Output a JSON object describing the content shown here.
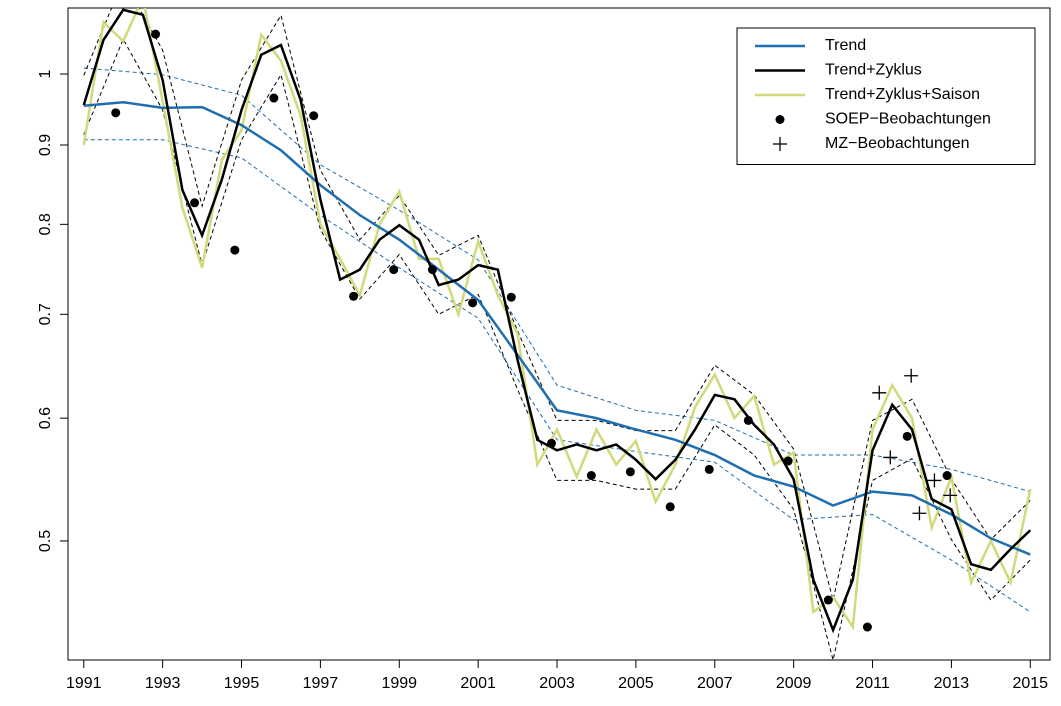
{
  "chart_data": {
    "type": "line",
    "log_y": true,
    "legend": "top-right",
    "xlim": [
      1990.6,
      2015.5
    ],
    "ylim": [
      0.419,
      1.103
    ],
    "xticks": [
      1991,
      1993,
      1995,
      1997,
      1999,
      2001,
      2003,
      2005,
      2007,
      2009,
      2011,
      2013,
      2015
    ],
    "yticks": [
      0.5,
      0.6,
      0.7,
      0.8,
      0.9,
      1
    ],
    "series": [
      {
        "color": "#1f6fb0",
        "style": "dashed",
        "kind": "line",
        "x": [
          1991,
          1993,
          1995,
          1997,
          1999,
          2001,
          2003,
          2005,
          2007,
          2009,
          2011,
          2013,
          2015
        ],
        "values": [
          1.009,
          0.999,
          0.969,
          0.874,
          0.817,
          0.759,
          0.63,
          0.607,
          0.598,
          0.568,
          0.568,
          0.556,
          0.538
        ]
      },
      {
        "color": "#1f6fb0",
        "style": "dashed",
        "kind": "line",
        "x": [
          1991,
          1993,
          1995,
          1997,
          1999,
          2001,
          2003,
          2005,
          2007,
          2009,
          2011,
          2013,
          2015
        ],
        "values": [
          0.907,
          0.907,
          0.883,
          0.811,
          0.75,
          0.696,
          0.581,
          0.571,
          0.562,
          0.516,
          0.52,
          0.486,
          0.45
        ]
      },
      {
        "color": "#000000",
        "style": "dashed",
        "kind": "line",
        "x": [
          1991,
          1992,
          1993,
          1994,
          1995,
          1996,
          1997,
          1998,
          1999,
          2000,
          2001,
          2002,
          2003,
          2004,
          2005,
          2006,
          2007,
          2008,
          2009,
          2010,
          2011,
          2012,
          2013,
          2014,
          2015
        ],
        "values": [
          0.998,
          1.15,
          1.036,
          0.822,
          0.991,
          1.091,
          0.867,
          0.782,
          0.835,
          0.764,
          0.787,
          0.683,
          0.598,
          0.598,
          0.589,
          0.589,
          0.649,
          0.621,
          0.573,
          0.458,
          0.598,
          0.617,
          0.548,
          0.501,
          0.531
        ]
      },
      {
        "color": "#000000",
        "style": "dashed",
        "kind": "line",
        "x": [
          1991,
          1992,
          1993,
          1994,
          1995,
          1996,
          1997,
          1998,
          1999,
          2000,
          2001,
          2002,
          2003,
          2004,
          2005,
          2006,
          2007,
          2008,
          2009,
          2010,
          2011,
          2012,
          2013,
          2014,
          2015
        ],
        "values": [
          0.914,
          1.053,
          0.948,
          0.753,
          0.907,
          0.999,
          0.794,
          0.716,
          0.765,
          0.7,
          0.721,
          0.626,
          0.547,
          0.547,
          0.54,
          0.54,
          0.594,
          0.568,
          0.524,
          0.419,
          0.547,
          0.565,
          0.501,
          0.458,
          0.486
        ]
      },
      {
        "name": "Trend+Zyklus+Saison",
        "color": "#d2d97a",
        "style": "solid",
        "kind": "line",
        "x": [
          1991,
          1991.5,
          1992,
          1992.5,
          1993,
          1993.5,
          1994,
          1994.5,
          1995,
          1995.5,
          1996,
          1996.5,
          1997,
          1997.5,
          1998,
          1998.5,
          1999,
          1999.5,
          2000,
          2000.5,
          2001,
          2001.5,
          2002,
          2002.5,
          2003,
          2003.5,
          2004,
          2004.5,
          2005,
          2005.5,
          2006,
          2006.5,
          2007,
          2007.5,
          2008,
          2008.5,
          2009,
          2009.5,
          2010,
          2010.5,
          2011,
          2011.5,
          2012,
          2012.5,
          2013,
          2013.5,
          2014,
          2014.5,
          2015
        ],
        "values": [
          0.9,
          1.08,
          1.05,
          1.12,
          0.96,
          0.82,
          0.75,
          0.88,
          0.92,
          1.06,
          1.02,
          0.94,
          0.8,
          0.76,
          0.72,
          0.8,
          0.84,
          0.76,
          0.76,
          0.7,
          0.78,
          0.72,
          0.68,
          0.56,
          0.59,
          0.55,
          0.59,
          0.56,
          0.58,
          0.53,
          0.56,
          0.61,
          0.64,
          0.6,
          0.62,
          0.56,
          0.57,
          0.45,
          0.46,
          0.44,
          0.59,
          0.63,
          0.6,
          0.51,
          0.55,
          0.47,
          0.5,
          0.47,
          0.54
        ]
      },
      {
        "name": "Trend",
        "color": "#1f6fb0",
        "style": "solid",
        "kind": "line",
        "x": [
          1991,
          1992,
          1993,
          1994,
          1995,
          1996,
          1997,
          1998,
          1999,
          2000,
          2001,
          2002,
          2003,
          2004,
          2005,
          2006,
          2007,
          2008,
          2009,
          2010,
          2011,
          2012,
          2013,
          2014,
          2015
        ],
        "values": [
          0.954,
          0.959,
          0.951,
          0.952,
          0.927,
          0.893,
          0.848,
          0.811,
          0.782,
          0.748,
          0.715,
          0.659,
          0.607,
          0.6,
          0.59,
          0.581,
          0.568,
          0.551,
          0.542,
          0.527,
          0.538,
          0.535,
          0.52,
          0.502,
          0.49
        ]
      },
      {
        "name": "Trend+Zyklus",
        "color": "#000000",
        "style": "solid",
        "kind": "line",
        "x": [
          1991,
          1991.5,
          1992,
          1992.5,
          1993,
          1993.5,
          1994,
          1994.5,
          1995,
          1995.5,
          1996,
          1996.5,
          1997,
          1997.5,
          1998,
          1998.5,
          1999,
          1999.5,
          2000,
          2000.5,
          2001,
          2001.5,
          2002,
          2002.5,
          2003,
          2003.5,
          2004,
          2004.5,
          2005,
          2005.5,
          2006,
          2006.5,
          2007,
          2007.5,
          2008,
          2008.5,
          2009,
          2009.5,
          2010,
          2010.5,
          2011,
          2011.5,
          2012,
          2012.5,
          2013,
          2013.5,
          2014,
          2014.5,
          2015
        ],
        "values": [
          0.955,
          1.052,
          1.1,
          1.092,
          0.991,
          0.842,
          0.787,
          0.855,
          0.948,
          1.029,
          1.044,
          0.962,
          0.83,
          0.737,
          0.748,
          0.782,
          0.799,
          0.782,
          0.731,
          0.737,
          0.753,
          0.748,
          0.654,
          0.581,
          0.572,
          0.577,
          0.572,
          0.577,
          0.564,
          0.548,
          0.564,
          0.59,
          0.621,
          0.617,
          0.594,
          0.577,
          0.548,
          0.472,
          0.438,
          0.472,
          0.572,
          0.612,
          0.59,
          0.532,
          0.524,
          0.483,
          0.479,
          0.494,
          0.508
        ]
      },
      {
        "name": "SOEP−Beobachtungen",
        "color": "#000000",
        "kind": "points",
        "marker": "dot",
        "x": [
          1991.81,
          1992.82,
          1993.81,
          1994.83,
          1995.82,
          1996.83,
          1997.84,
          1998.86,
          1999.84,
          2000.86,
          2001.84,
          2002.86,
          2003.87,
          2004.86,
          2005.87,
          2006.86,
          2007.85,
          2008.86,
          2009.88,
          2010.87,
          2011.88,
          2012.89
        ],
        "values": [
          0.944,
          1.061,
          0.826,
          0.77,
          0.965,
          0.94,
          0.719,
          0.748,
          0.748,
          0.712,
          0.718,
          0.578,
          0.551,
          0.554,
          0.526,
          0.556,
          0.598,
          0.563,
          0.458,
          0.44,
          0.584,
          0.551
        ]
      },
      {
        "name": "MZ−Beobachtungen",
        "color": "#000000",
        "kind": "points",
        "marker": "plus",
        "x": [
          2011.17,
          2011.45,
          2011.98,
          2012.19,
          2012.57,
          2012.97
        ],
        "values": [
          0.623,
          0.566,
          0.639,
          0.521,
          0.547,
          0.535
        ]
      }
    ]
  }
}
